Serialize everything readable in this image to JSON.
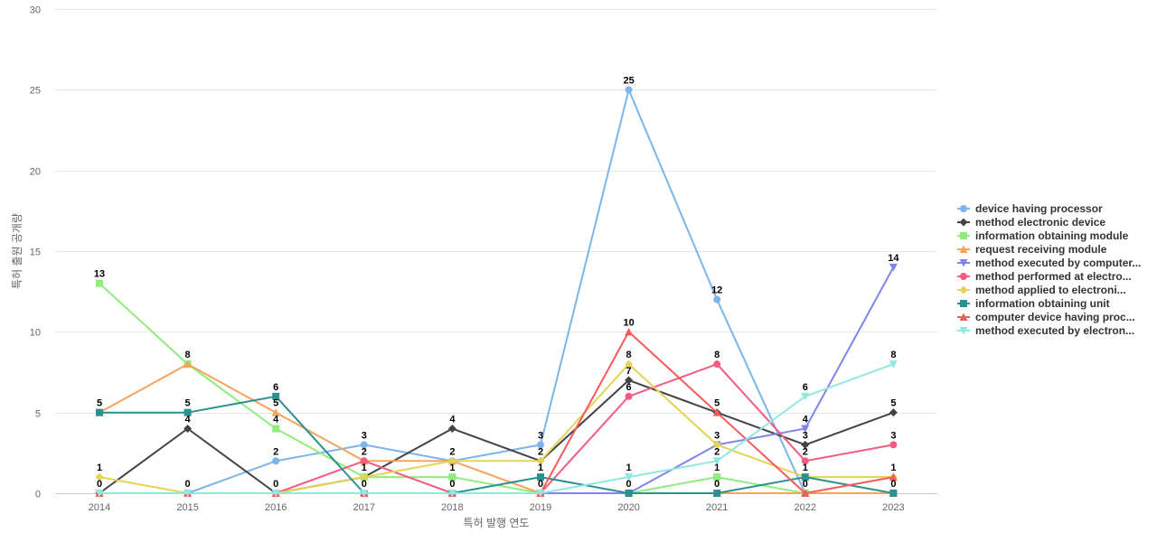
{
  "chart_data": {
    "type": "line",
    "xlabel": "특허 발행 연도",
    "ylabel": "특허 출원 공개량",
    "ylim": [
      0,
      30
    ],
    "yticks": [
      0,
      5,
      10,
      15,
      20,
      25,
      30
    ],
    "grid": true,
    "legend_position": "right",
    "categories": [
      "2014",
      "2015",
      "2016",
      "2017",
      "2018",
      "2019",
      "2020",
      "2021",
      "2022",
      "2023"
    ],
    "series": [
      {
        "name": "device having processor",
        "color": "#7cb5ec",
        "marker": "circle",
        "values": [
          0,
          0,
          2,
          3,
          2,
          3,
          25,
          12,
          0,
          0
        ]
      },
      {
        "name": "method electronic device",
        "color": "#434348",
        "marker": "diamond",
        "values": [
          0,
          4,
          0,
          1,
          4,
          2,
          7,
          5,
          3,
          5
        ]
      },
      {
        "name": "information obtaining module",
        "color": "#90ed7d",
        "marker": "square",
        "values": [
          13,
          8,
          4,
          1,
          1,
          0,
          0,
          1,
          0,
          0
        ]
      },
      {
        "name": "request receiving module",
        "color": "#f7a35c",
        "marker": "triangle",
        "values": [
          5,
          8,
          5,
          2,
          2,
          0,
          0,
          0,
          0,
          0
        ]
      },
      {
        "name": "method executed by computer...",
        "color": "#8085e9",
        "marker": "triangle-down",
        "values": [
          0,
          0,
          0,
          0,
          0,
          0,
          0,
          3,
          4,
          14
        ]
      },
      {
        "name": "method performed at electro...",
        "color": "#f15c80",
        "marker": "circle",
        "values": [
          0,
          0,
          0,
          2,
          0,
          0,
          6,
          8,
          2,
          3
        ]
      },
      {
        "name": "method applied to electroni...",
        "color": "#e4d354",
        "marker": "diamond",
        "values": [
          1,
          0,
          0,
          1,
          2,
          2,
          8,
          3,
          1,
          1
        ]
      },
      {
        "name": "information obtaining unit",
        "color": "#2b908f",
        "marker": "square",
        "values": [
          5,
          5,
          6,
          0,
          0,
          1,
          0,
          0,
          1,
          0
        ]
      },
      {
        "name": "computer device having proc...",
        "color": "#f45b5b",
        "marker": "triangle",
        "values": [
          0,
          0,
          0,
          0,
          0,
          0,
          10,
          5,
          0,
          1
        ]
      },
      {
        "name": "method executed by electron...",
        "color": "#91e8e1",
        "marker": "triangle-down",
        "values": [
          0,
          0,
          0,
          0,
          0,
          0,
          1,
          2,
          6,
          8
        ]
      }
    ],
    "max_labels": [
      {
        "category": "2014",
        "value": 13
      },
      {
        "category": "2015",
        "value": 8
      },
      {
        "category": "2016",
        "value": 6
      },
      {
        "category": "2017",
        "value": 3
      },
      {
        "category": "2018",
        "value": 4
      },
      {
        "category": "2019",
        "value": 3
      },
      {
        "category": "2020",
        "value": 25
      },
      {
        "category": "2021",
        "value": 12
      },
      {
        "category": "2022",
        "value": 6
      },
      {
        "category": "2023",
        "value": 14
      }
    ],
    "data_labels": [
      {
        "category": "2014",
        "value": 13
      },
      {
        "category": "2014",
        "value": 5
      },
      {
        "category": "2014",
        "value": 1
      },
      {
        "category": "2014",
        "value": 0
      },
      {
        "category": "2015",
        "value": 8
      },
      {
        "category": "2015",
        "value": 5
      },
      {
        "category": "2015",
        "value": 4
      },
      {
        "category": "2015",
        "value": 0
      },
      {
        "category": "2016",
        "value": 6
      },
      {
        "category": "2016",
        "value": 5
      },
      {
        "category": "2016",
        "value": 4
      },
      {
        "category": "2016",
        "value": 2
      },
      {
        "category": "2016",
        "value": 0
      },
      {
        "category": "2017",
        "value": 3
      },
      {
        "category": "2017",
        "value": 2
      },
      {
        "category": "2017",
        "value": 1
      },
      {
        "category": "2017",
        "value": 0
      },
      {
        "category": "2018",
        "value": 4
      },
      {
        "category": "2018",
        "value": 2
      },
      {
        "category": "2018",
        "value": 1
      },
      {
        "category": "2018",
        "value": 0
      },
      {
        "category": "2019",
        "value": 3
      },
      {
        "category": "2019",
        "value": 2
      },
      {
        "category": "2019",
        "value": 1
      },
      {
        "category": "2019",
        "value": 0
      },
      {
        "category": "2020",
        "value": 25
      },
      {
        "category": "2020",
        "value": 10
      },
      {
        "category": "2020",
        "value": 8
      },
      {
        "category": "2020",
        "value": 7
      },
      {
        "category": "2020",
        "value": 6
      },
      {
        "category": "2020",
        "value": 1
      },
      {
        "category": "2020",
        "value": 0
      },
      {
        "category": "2021",
        "value": 12
      },
      {
        "category": "2021",
        "value": 8
      },
      {
        "category": "2021",
        "value": 5
      },
      {
        "category": "2021",
        "value": 3
      },
      {
        "category": "2021",
        "value": 2
      },
      {
        "category": "2021",
        "value": 1
      },
      {
        "category": "2021",
        "value": 0
      },
      {
        "category": "2022",
        "value": 6
      },
      {
        "category": "2022",
        "value": 4
      },
      {
        "category": "2022",
        "value": 3
      },
      {
        "category": "2022",
        "value": 2
      },
      {
        "category": "2022",
        "value": 1
      },
      {
        "category": "2022",
        "value": 0
      },
      {
        "category": "2023",
        "value": 14
      },
      {
        "category": "2023",
        "value": 8
      },
      {
        "category": "2023",
        "value": 5
      },
      {
        "category": "2023",
        "value": 3
      },
      {
        "category": "2023",
        "value": 1
      },
      {
        "category": "2023",
        "value": 0
      }
    ]
  }
}
